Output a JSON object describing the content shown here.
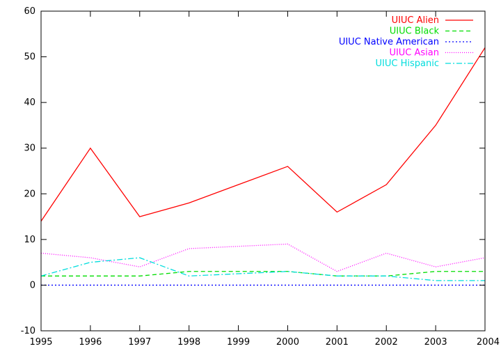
{
  "chart_data": {
    "type": "line",
    "title": "",
    "xlabel": "",
    "ylabel": "",
    "x": [
      1995,
      1996,
      1997,
      1998,
      1999,
      2000,
      2001,
      2002,
      2003,
      2004
    ],
    "xlim": [
      1995,
      2004
    ],
    "ylim": [
      -10,
      60
    ],
    "x_ticks": [
      "1995",
      "1996",
      "1997",
      "1998",
      "1999",
      "2000",
      "2001",
      "2002",
      "2003",
      "2004"
    ],
    "y_ticks": [
      "-10",
      "0",
      "10",
      "20",
      "30",
      "40",
      "50",
      "60"
    ],
    "grid": false,
    "legend_position": "top-right",
    "series": [
      {
        "name": "UIUC Alien",
        "color": "#ff0000",
        "dash": "solid",
        "values": [
          14,
          30,
          15,
          18,
          22,
          26,
          16,
          22,
          35,
          52
        ]
      },
      {
        "name": "UIUC Black",
        "color": "#00dd00",
        "dash": "dashed",
        "values": [
          2,
          2,
          2,
          3,
          3,
          3,
          2,
          2,
          3,
          3
        ]
      },
      {
        "name": "UIUC Native American",
        "color": "#0000ff",
        "dash": "dotted",
        "values": [
          0,
          0,
          0,
          0,
          0,
          0,
          0,
          0,
          0,
          0
        ]
      },
      {
        "name": "UIUC Asian",
        "color": "#ff00ff",
        "dash": "fine-dotted",
        "values": [
          7,
          6,
          4,
          8,
          8.5,
          9,
          3,
          7,
          4,
          6
        ]
      },
      {
        "name": "UIUC Hispanic",
        "color": "#00dddd",
        "dash": "dash-dot",
        "values": [
          2,
          5,
          6,
          2,
          2.5,
          3,
          2,
          2,
          1,
          1
        ]
      }
    ]
  }
}
